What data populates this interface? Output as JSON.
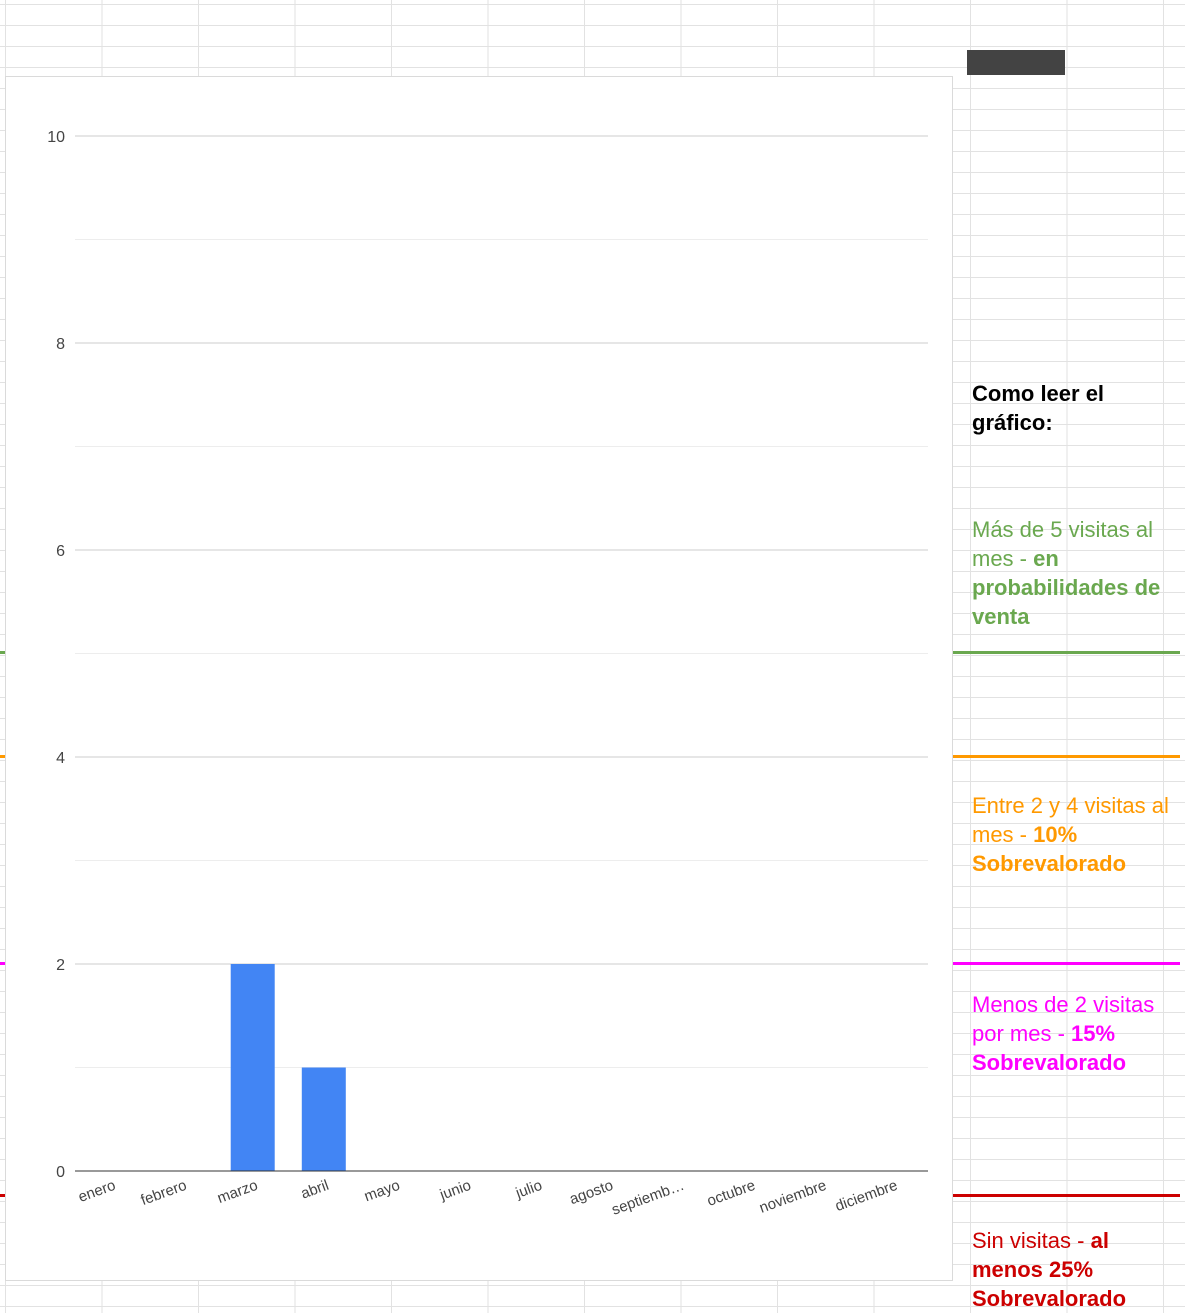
{
  "chart_data": {
    "type": "bar",
    "categories": [
      "enero",
      "febrero",
      "marzo",
      "abril",
      "mayo",
      "junio",
      "julio",
      "agosto",
      "septiemb…",
      "octubre",
      "noviembre",
      "diciembre"
    ],
    "values": [
      0,
      0,
      2,
      1,
      0,
      0,
      0,
      0,
      0,
      0,
      0,
      0
    ],
    "title": "",
    "xlabel": "",
    "ylabel": "",
    "ylim": [
      0,
      10
    ],
    "yticks": [
      "0",
      "2",
      "4",
      "6",
      "8",
      "10"
    ],
    "grid": true,
    "bar_color": "#4285f4"
  },
  "thresholds": [
    {
      "value": 5,
      "color": "#6aa84f"
    },
    {
      "value": 4,
      "color": "#ff9900"
    },
    {
      "value": 2,
      "color": "#ff00ff"
    },
    {
      "value": -0.25,
      "color": "#cc0000"
    }
  ],
  "legend": {
    "heading": "Como leer el gráfico:",
    "items": [
      {
        "normal": "Más de 5 visitas al mes - ",
        "bold": "en probabilidades de venta",
        "color": "#6aa84f"
      },
      {
        "normal": "Entre 2 y 4 visitas al mes - ",
        "bold": "10% Sobrevalorado",
        "color": "#ff9900"
      },
      {
        "normal": "Menos de 2 visitas por mes - ",
        "bold": "15% Sobrevalorado",
        "color": "#ff00ff"
      },
      {
        "normal": "Sin visitas - ",
        "bold": "al menos 25% Sobrevalorado",
        "color": "#cc0000"
      }
    ]
  }
}
